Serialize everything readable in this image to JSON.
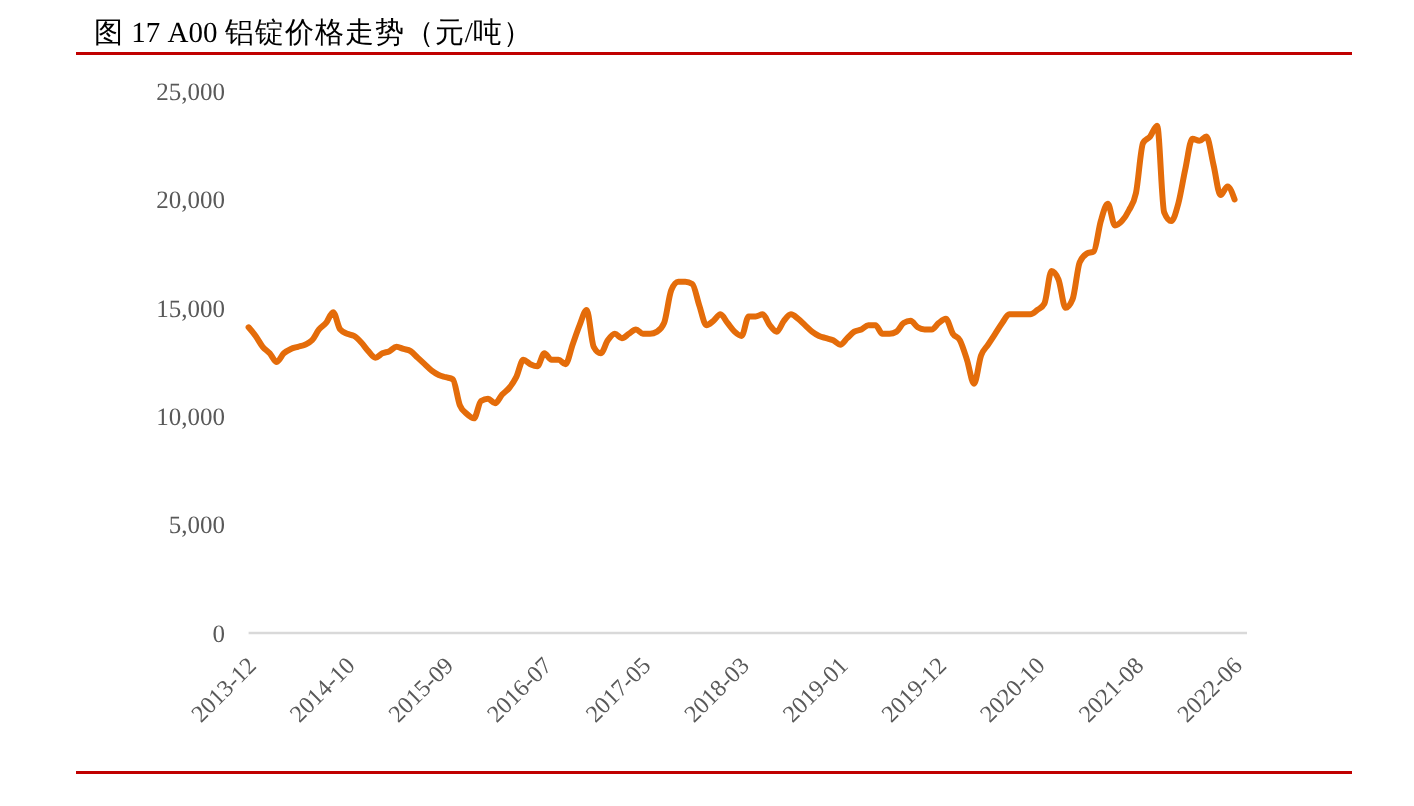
{
  "chart_data": {
    "type": "line",
    "title": "图 17 A00 铝锭价格走势（元/吨）",
    "categories": [
      "2013-12",
      null,
      null,
      null,
      null,
      null,
      null,
      null,
      null,
      null,
      null,
      null,
      null,
      null,
      "2014-10",
      null,
      null,
      null,
      null,
      null,
      null,
      null,
      null,
      null,
      null,
      null,
      null,
      null,
      "2015-09",
      null,
      null,
      null,
      null,
      null,
      null,
      null,
      null,
      null,
      null,
      null,
      null,
      null,
      "2016-07",
      null,
      null,
      null,
      null,
      null,
      null,
      null,
      null,
      null,
      null,
      null,
      null,
      null,
      "2017-05",
      null,
      null,
      null,
      null,
      null,
      null,
      null,
      null,
      null,
      null,
      null,
      null,
      null,
      "2018-03",
      null,
      null,
      null,
      null,
      null,
      null,
      null,
      null,
      null,
      null,
      null,
      null,
      null,
      "2019-01",
      null,
      null,
      null,
      null,
      null,
      null,
      null,
      null,
      null,
      null,
      null,
      null,
      null,
      "2019-12",
      null,
      null,
      null,
      null,
      null,
      null,
      null,
      null,
      null,
      null,
      null,
      null,
      null,
      "2020-10",
      null,
      null,
      null,
      null,
      null,
      null,
      null,
      null,
      null,
      null,
      null,
      null,
      null,
      "2021-08",
      null,
      null,
      null,
      null,
      null,
      null,
      null,
      null,
      null,
      null,
      null,
      null,
      null,
      "2022-06"
    ],
    "series": [
      {
        "color": "#e46c0a",
        "values": [
          14100,
          13700,
          13200,
          12900,
          12500,
          12900,
          13100,
          13200,
          13300,
          13500,
          14000,
          14300,
          14800,
          14000,
          13800,
          13700,
          13400,
          13000,
          12700,
          12900,
          13000,
          13200,
          13100,
          13000,
          12700,
          12400,
          12100,
          11900,
          11800,
          11700,
          10500,
          10100,
          9900,
          10700,
          10800,
          10600,
          11000,
          11300,
          11800,
          12600,
          12400,
          12300,
          12900,
          12600,
          12600,
          12400,
          13300,
          14200,
          14900,
          13200,
          12900,
          13500,
          13800,
          13600,
          13800,
          14000,
          13800,
          13800,
          13900,
          14300,
          15800,
          16200,
          16200,
          16100,
          15100,
          14200,
          14400,
          14700,
          14300,
          13900,
          13700,
          14600,
          14600,
          14700,
          14200,
          13900,
          14400,
          14700,
          14500,
          14200,
          13900,
          13700,
          13600,
          13500,
          13300,
          13600,
          13900,
          14000,
          14200,
          14200,
          13800,
          13800,
          13900,
          14300,
          14400,
          14100,
          14000,
          14000,
          14300,
          14500,
          13800,
          13500,
          12600,
          11500,
          12800,
          13300,
          13800,
          14300,
          14700,
          14700,
          14700,
          14700,
          14900,
          15200,
          16700,
          16300,
          15000,
          15400,
          17100,
          17500,
          17600,
          19000,
          19800,
          18800,
          19000,
          19500,
          20300,
          22600,
          22900,
          23400,
          19400,
          19000,
          19800,
          21400,
          22800,
          22700,
          22900,
          21600,
          20200,
          20600,
          20000
        ]
      }
    ],
    "ylim": [
      0,
      25000
    ],
    "yticks": [
      {
        "value": 0,
        "label": "0"
      },
      {
        "value": 5000,
        "label": "5,000"
      },
      {
        "value": 10000,
        "label": "10,000"
      },
      {
        "value": 15000,
        "label": "15,000"
      },
      {
        "value": 20000,
        "label": "20,000"
      },
      {
        "value": 25000,
        "label": "25,000"
      }
    ]
  }
}
